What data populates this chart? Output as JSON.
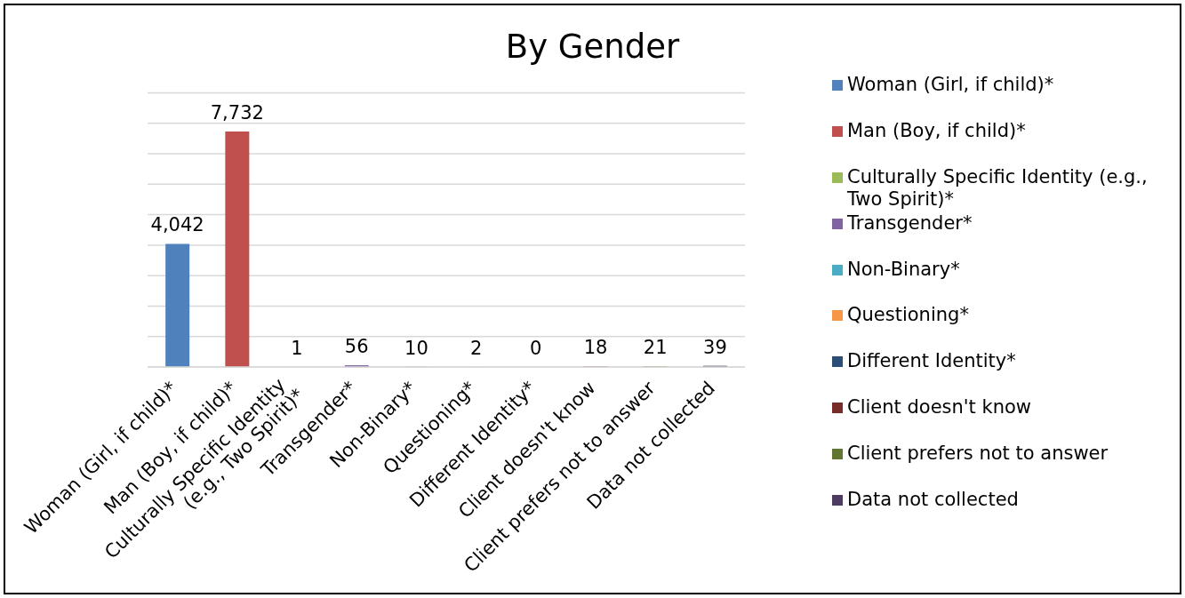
{
  "chart_data": {
    "type": "bar",
    "title": "By Gender",
    "categories": [
      "Woman (Girl, if child)*",
      "Man (Boy, if child)*",
      "Culturally Specific Identity (e.g., Two Spirit)*",
      "Transgender*",
      "Non-Binary*",
      "Questioning*",
      "Different Identity*",
      "Client doesn't know",
      "Client prefers not to answer",
      "Data not collected"
    ],
    "series": [
      {
        "name": "Woman (Girl, if child)*",
        "color": "#4f81bd",
        "values": [
          4042,
          null,
          null,
          null,
          null,
          null,
          null,
          null,
          null,
          null
        ],
        "value_labels": [
          "4,042",
          null,
          null,
          null,
          null,
          null,
          null,
          null,
          null,
          null
        ]
      },
      {
        "name": "Man (Boy, if child)*",
        "color": "#c0504d",
        "values": [
          null,
          7732,
          null,
          null,
          null,
          null,
          null,
          null,
          null,
          null
        ],
        "value_labels": [
          null,
          "7,732",
          null,
          null,
          null,
          null,
          null,
          null,
          null,
          null
        ]
      },
      {
        "name": "Culturally Specific Identity (e.g., Two Spirit)*",
        "color": "#9bbb59",
        "values": [
          null,
          null,
          1,
          null,
          null,
          null,
          null,
          null,
          null,
          null
        ],
        "value_labels": [
          null,
          null,
          "1",
          null,
          null,
          null,
          null,
          null,
          null,
          null
        ]
      },
      {
        "name": "Transgender*",
        "color": "#8064a2",
        "values": [
          null,
          null,
          null,
          56,
          null,
          null,
          null,
          null,
          null,
          null
        ],
        "value_labels": [
          null,
          null,
          null,
          "56",
          null,
          null,
          null,
          null,
          null,
          null
        ]
      },
      {
        "name": "Non-Binary*",
        "color": "#4bacc6",
        "values": [
          null,
          null,
          null,
          null,
          10,
          null,
          null,
          null,
          null,
          null
        ],
        "value_labels": [
          null,
          null,
          null,
          null,
          "10",
          null,
          null,
          null,
          null,
          null
        ]
      },
      {
        "name": "Questioning*",
        "color": "#f79646",
        "values": [
          null,
          null,
          null,
          null,
          null,
          2,
          null,
          null,
          null,
          null
        ],
        "value_labels": [
          null,
          null,
          null,
          null,
          null,
          "2",
          null,
          null,
          null,
          null
        ]
      },
      {
        "name": "Different Identity*",
        "color": "#2c4d75",
        "values": [
          null,
          null,
          null,
          null,
          null,
          null,
          0,
          null,
          null,
          null
        ],
        "value_labels": [
          null,
          null,
          null,
          null,
          null,
          null,
          "0",
          null,
          null,
          null
        ]
      },
      {
        "name": "Client doesn't know",
        "color": "#772c2a",
        "values": [
          null,
          null,
          null,
          null,
          null,
          null,
          null,
          18,
          null,
          null
        ],
        "value_labels": [
          null,
          null,
          null,
          null,
          null,
          null,
          null,
          "18",
          null,
          null
        ]
      },
      {
        "name": "Client prefers not to answer",
        "color": "#5f7530",
        "values": [
          null,
          null,
          null,
          null,
          null,
          null,
          null,
          null,
          21,
          null
        ],
        "value_labels": [
          null,
          null,
          null,
          null,
          null,
          null,
          null,
          null,
          "21",
          null
        ]
      },
      {
        "name": "Data not collected",
        "color": "#4d3b62",
        "values": [
          null,
          null,
          null,
          null,
          null,
          null,
          null,
          null,
          null,
          39
        ],
        "value_labels": [
          null,
          null,
          null,
          null,
          null,
          null,
          null,
          null,
          null,
          "39"
        ]
      }
    ],
    "stacked": true,
    "ylim": [
      0,
      9000
    ],
    "grid": "y",
    "tick_labels": "x",
    "legend": "right"
  }
}
